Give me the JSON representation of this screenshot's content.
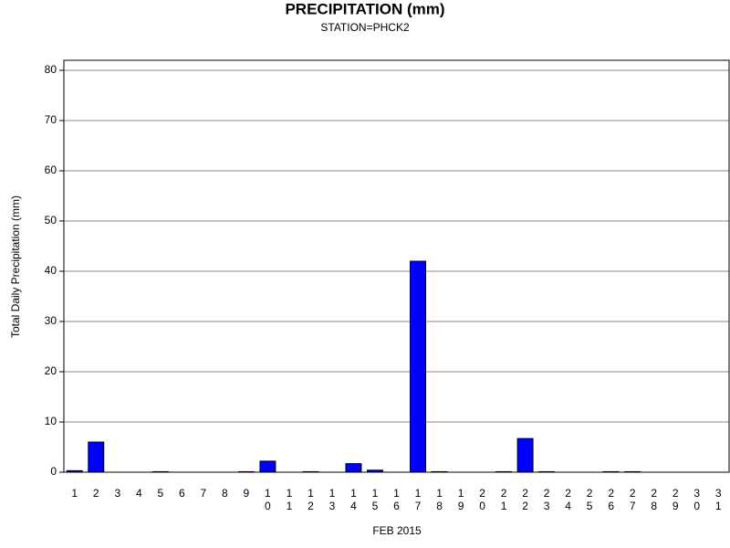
{
  "chart_data": {
    "type": "bar",
    "title": "PRECIPITATION (mm)",
    "subtitle": "STATION=PHCK2",
    "x_label": "FEB 2015",
    "y_label": "Total Daily Precipitation (mm)",
    "categories": [
      "1",
      "2",
      "3",
      "4",
      "5",
      "6",
      "7",
      "8",
      "9",
      "10",
      "11",
      "12",
      "13",
      "14",
      "15",
      "16",
      "17",
      "18",
      "19",
      "20",
      "21",
      "22",
      "23",
      "24",
      "25",
      "26",
      "27",
      "28",
      "29",
      "30",
      "31"
    ],
    "values": [
      0.3,
      6,
      0,
      0,
      0.1,
      0,
      0,
      0,
      0.1,
      2.2,
      0,
      0.1,
      0,
      1.7,
      0.4,
      0,
      42,
      0.1,
      0,
      0,
      0.1,
      6.7,
      0.1,
      0,
      0,
      0.1,
      0.1,
      0,
      0,
      0,
      0
    ],
    "color": "#0000ff",
    "ylim": [
      0,
      82
    ],
    "yticks": [
      0,
      10,
      20,
      30,
      40,
      50,
      60,
      70,
      80
    ],
    "grid": true
  }
}
